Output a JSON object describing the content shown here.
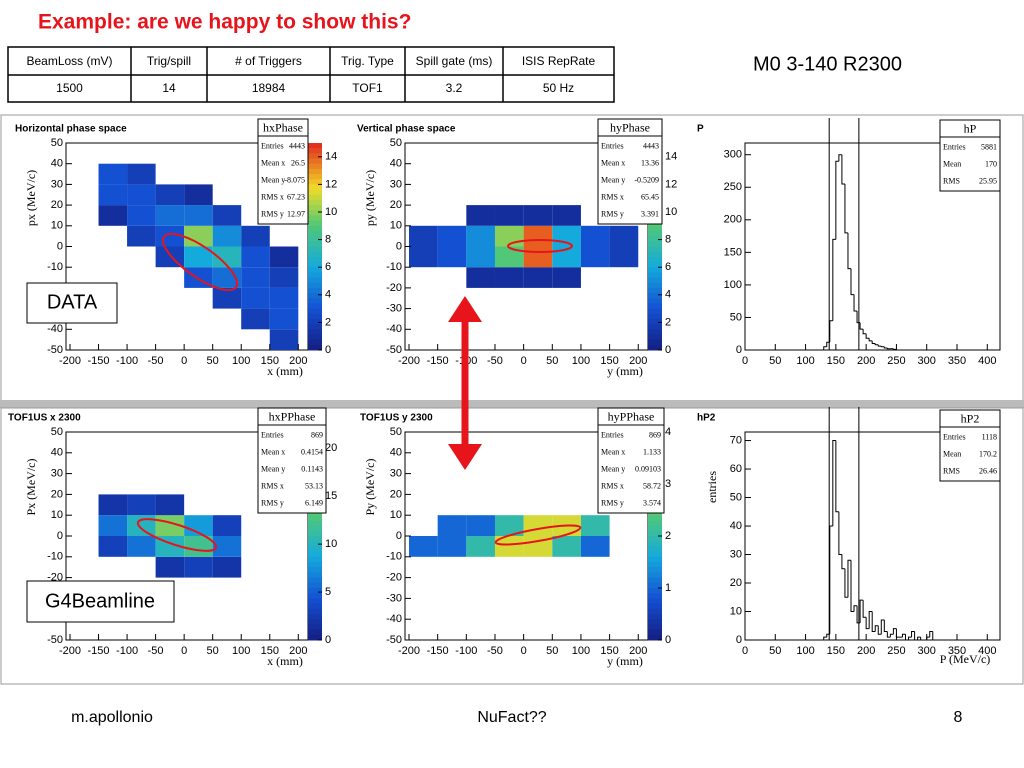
{
  "title": "Example: are we happy to show this?",
  "table": {
    "header": [
      "BeamLoss (mV)",
      "Trig/spill",
      "# of Triggers",
      "Trig. Type",
      "Spill gate (ms)",
      "ISIS RepRate"
    ],
    "rows": [
      [
        "1500",
        "14",
        "18984",
        "TOF1",
        "3.2",
        "50 Hz"
      ]
    ]
  },
  "run_label": "M0  3-140 R2300",
  "labels": [
    "DATA",
    "G4Beamline"
  ],
  "footer": {
    "left": "m.apollonio",
    "center": "NuFact??",
    "right": "8"
  },
  "chart_data": [
    {
      "type": "heatmap",
      "title": "Horizontal phase space",
      "stats_name": "hxPhase",
      "stats": [
        {
          "label": "Entries",
          "value": 4443
        },
        {
          "label": "Mean x",
          "value": 26.5
        },
        {
          "label": "Mean y",
          "value": -8.075
        },
        {
          "label": "RMS x",
          "value": 67.23
        },
        {
          "label": "RMS y",
          "value": 12.97
        }
      ],
      "xlabel": "x (mm)",
      "ylabel": "px (MeV/c)",
      "xbins": [
        -150,
        -100,
        -50,
        0,
        50,
        100,
        150,
        200
      ],
      "ybins": [
        -50,
        -40,
        -30,
        -20,
        -10,
        0,
        10,
        20,
        30,
        40,
        50
      ],
      "z": [
        [
          0,
          0,
          0,
          0,
          0,
          0,
          2
        ],
        [
          0,
          0,
          0,
          0,
          0,
          2,
          3
        ],
        [
          0,
          0,
          0,
          0,
          2,
          3,
          3
        ],
        [
          0,
          0,
          0,
          3,
          4,
          3,
          2
        ],
        [
          0,
          0,
          2,
          6,
          7,
          3,
          1
        ],
        [
          0,
          2,
          3,
          10,
          5,
          2,
          0
        ],
        [
          1,
          3,
          4,
          4,
          2,
          0,
          0
        ],
        [
          3,
          3,
          2,
          1,
          0,
          0,
          0
        ],
        [
          3,
          2,
          0,
          0,
          0,
          0,
          0
        ],
        [
          0,
          0,
          0,
          0,
          0,
          0,
          0
        ]
      ],
      "xlim": [
        -207,
        217
      ],
      "ylim": [
        -50,
        50
      ],
      "xticks": [
        -200,
        -150,
        -100,
        -50,
        0,
        50,
        100,
        150,
        200
      ],
      "yticks": [
        -50,
        -40,
        -30,
        -20,
        -10,
        0,
        10,
        20,
        30,
        40,
        50
      ],
      "zlim": [
        0,
        15
      ],
      "zticks": [
        0,
        2,
        4,
        6,
        8,
        10,
        12,
        14
      ]
    },
    {
      "type": "heatmap",
      "title": "Vertical phase space",
      "stats_name": "hyPhase",
      "stats": [
        {
          "label": "Entries",
          "value": 4443
        },
        {
          "label": "Mean x",
          "value": 13.36
        },
        {
          "label": "Mean y",
          "value": -0.5209
        },
        {
          "label": "RMS x",
          "value": 65.45
        },
        {
          "label": "RMS y",
          "value": 3.391
        }
      ],
      "xlabel": "y (mm)",
      "ylabel": "py (MeV/c)",
      "xbins": [
        -200,
        -150,
        -100,
        -50,
        0,
        50,
        100,
        150,
        200
      ],
      "ybins": [
        -50,
        -40,
        -30,
        -20,
        -10,
        0,
        10,
        20,
        30,
        40,
        50
      ],
      "z": [
        [
          0,
          0,
          0,
          0,
          0,
          0,
          0,
          0
        ],
        [
          0,
          0,
          0,
          0,
          0,
          0,
          0,
          0
        ],
        [
          0,
          0,
          0,
          0,
          0,
          0,
          0,
          0
        ],
        [
          0,
          0,
          1,
          1,
          1,
          1,
          0,
          0
        ],
        [
          2,
          3,
          5,
          9,
          14,
          6,
          3,
          2
        ],
        [
          2,
          3,
          5,
          10,
          14,
          6,
          3,
          2
        ],
        [
          0,
          0,
          1,
          1,
          1,
          1,
          0,
          0
        ],
        [
          0,
          0,
          0,
          0,
          0,
          0,
          0,
          0
        ],
        [
          0,
          0,
          0,
          0,
          0,
          0,
          0,
          0
        ],
        [
          0,
          0,
          0,
          0,
          0,
          0,
          0,
          0
        ]
      ],
      "xlim": [
        -207,
        217
      ],
      "ylim": [
        -50,
        50
      ],
      "xticks": [
        -200,
        -150,
        -100,
        -50,
        0,
        50,
        100,
        150,
        200
      ],
      "yticks": [
        -50,
        -40,
        -30,
        -20,
        -10,
        0,
        10,
        20,
        30,
        40,
        50
      ],
      "zlim": [
        0,
        15
      ],
      "zticks": [
        0,
        2,
        4,
        6,
        8,
        10,
        12,
        14
      ]
    },
    {
      "type": "histogram",
      "title": "P",
      "stats_name": "hP",
      "stats": [
        {
          "label": "Entries",
          "value": 5881
        },
        {
          "label": "Mean",
          "value": 170
        },
        {
          "label": "RMS",
          "value": 25.95
        }
      ],
      "bins": [
        125,
        130,
        135,
        140,
        145,
        150,
        155,
        160,
        165,
        170,
        175,
        180,
        185,
        190,
        195,
        200,
        205,
        210,
        215,
        220,
        225,
        230,
        235,
        240,
        245,
        250
      ],
      "values": [
        0,
        5,
        12,
        45,
        170,
        290,
        300,
        255,
        180,
        125,
        85,
        60,
        42,
        32,
        25,
        18,
        14,
        10,
        8,
        6,
        5,
        3,
        2,
        2,
        1
      ],
      "markers": [
        139,
        188
      ],
      "xlim": [
        0,
        421
      ],
      "ylim": [
        0,
        318
      ],
      "xticks": [
        0,
        50,
        100,
        150,
        200,
        250,
        300,
        350,
        400
      ],
      "yticks": [
        0,
        50,
        100,
        150,
        200,
        250,
        300
      ]
    },
    {
      "type": "heatmap",
      "title": "TOF1US x 2300",
      "stats_name": "hxPPhase",
      "stats": [
        {
          "label": "Entries",
          "value": 869
        },
        {
          "label": "Mean x",
          "value": 0.4154
        },
        {
          "label": "Mean y",
          "value": 0.1143
        },
        {
          "label": "RMS x",
          "value": 53.13
        },
        {
          "label": "RMS y",
          "value": 6.149
        }
      ],
      "xlabel": "x (mm)",
      "ylabel": "Px (MeV/c)",
      "xbins": [
        -150,
        -100,
        -50,
        0,
        50,
        100
      ],
      "ybins": [
        -50,
        -40,
        -30,
        -20,
        -10,
        0,
        10,
        20,
        30,
        40,
        50
      ],
      "z": [
        [
          0,
          0,
          0,
          0,
          0
        ],
        [
          0,
          0,
          0,
          0,
          0
        ],
        [
          0,
          0,
          0,
          0,
          0
        ],
        [
          0,
          0,
          2,
          3,
          2
        ],
        [
          3,
          6,
          10,
          12,
          6
        ],
        [
          6,
          10,
          14,
          8,
          3
        ],
        [
          2,
          3,
          2,
          0,
          0
        ],
        [
          0,
          0,
          0,
          0,
          0
        ],
        [
          0,
          0,
          0,
          0,
          0
        ],
        [
          0,
          0,
          0,
          0,
          0
        ]
      ],
      "xlim": [
        -207,
        217
      ],
      "ylim": [
        -50,
        50
      ],
      "xticks": [
        -200,
        -150,
        -100,
        -50,
        0,
        50,
        100,
        150,
        200
      ],
      "yticks": [
        -50,
        -40,
        -30,
        -20,
        -10,
        0,
        10,
        20,
        30,
        40,
        50
      ],
      "zlim": [
        0,
        21.7
      ],
      "zticks": [
        0,
        5,
        10,
        15,
        20
      ]
    },
    {
      "type": "heatmap",
      "title": "TOF1US y 2300",
      "stats_name": "hyPPhase",
      "stats": [
        {
          "label": "Entries",
          "value": 869
        },
        {
          "label": "Mean x",
          "value": 1.133
        },
        {
          "label": "Mean y",
          "value": 0.09103
        },
        {
          "label": "RMS x",
          "value": 58.72
        },
        {
          "label": "RMS y",
          "value": 3.574
        }
      ],
      "xlabel": "y (mm)",
      "ylabel": "Py (MeV/c)",
      "xbins": [
        -200,
        -150,
        -100,
        -50,
        0,
        50,
        100,
        150
      ],
      "ybins": [
        -50,
        -40,
        -30,
        -20,
        -10,
        0,
        10,
        20,
        30,
        40,
        50
      ],
      "z": [
        [
          0,
          0,
          0,
          0,
          0,
          0,
          0
        ],
        [
          0,
          0,
          0,
          0,
          0,
          0,
          0
        ],
        [
          0,
          0,
          0,
          0,
          0,
          0,
          0
        ],
        [
          0,
          0,
          0,
          0,
          0,
          0,
          0
        ],
        [
          1,
          1,
          2,
          3,
          3,
          2,
          1
        ],
        [
          0,
          1,
          1,
          2,
          3,
          3,
          2
        ],
        [
          0,
          0,
          0,
          0,
          0,
          0,
          0
        ],
        [
          0,
          0,
          0,
          0,
          0,
          0,
          0
        ],
        [
          0,
          0,
          0,
          0,
          0,
          0,
          0
        ],
        [
          0,
          0,
          0,
          0,
          0,
          0,
          0
        ]
      ],
      "xlim": [
        -207,
        217
      ],
      "ylim": [
        -50,
        50
      ],
      "xticks": [
        -200,
        -150,
        -100,
        -50,
        0,
        50,
        100,
        150,
        200
      ],
      "yticks": [
        -50,
        -40,
        -30,
        -20,
        -10,
        0,
        10,
        20,
        30,
        40,
        50
      ],
      "zlim": [
        0,
        4
      ],
      "zticks": [
        0,
        1,
        2,
        3,
        4
      ]
    },
    {
      "type": "histogram",
      "title": "hP2",
      "stats_name": "hP2",
      "stats": [
        {
          "label": "Entries",
          "value": 1118
        },
        {
          "label": "Mean",
          "value": 170.2
        },
        {
          "label": "RMS",
          "value": 26.46
        }
      ],
      "xlabel": "P (MeV/c)",
      "ylabel": "entries",
      "bins": [
        125,
        130,
        135,
        140,
        145,
        150,
        155,
        160,
        165,
        170,
        175,
        180,
        185,
        190,
        195,
        200,
        205,
        210,
        215,
        220,
        225,
        230,
        235,
        240,
        245,
        250,
        255,
        260,
        265,
        270,
        275,
        280,
        285,
        290,
        295,
        300,
        305,
        310,
        315
      ],
      "values": [
        0,
        1,
        2,
        40,
        70,
        45,
        30,
        25,
        15,
        28,
        10,
        12,
        6,
        14,
        8,
        4,
        10,
        3,
        5,
        2,
        7,
        3,
        1,
        2,
        4,
        1,
        1,
        2,
        0,
        1,
        3,
        0,
        1,
        0,
        0,
        1,
        3,
        0
      ],
      "markers": [
        139,
        188
      ],
      "xlim": [
        0,
        421
      ],
      "ylim": [
        0,
        73
      ],
      "xticks": [
        0,
        50,
        100,
        150,
        200,
        250,
        300,
        350,
        400
      ],
      "yticks": [
        0,
        10,
        20,
        30,
        40,
        50,
        60,
        70
      ]
    }
  ]
}
